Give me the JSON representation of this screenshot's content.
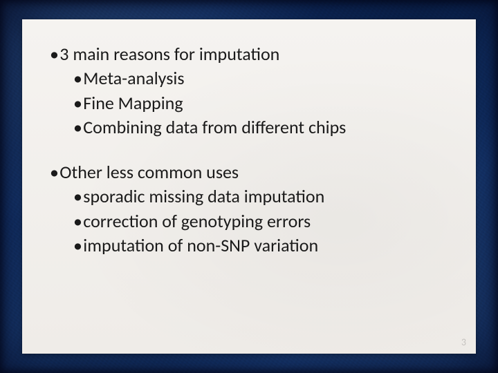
{
  "slide": {
    "background_colors": {
      "frame_base": "#0e2a5c",
      "frame_gradient_stops": [
        "#0a1f47",
        "#12346e",
        "#0d2a5a",
        "#163c7a",
        "#0b2450"
      ],
      "panel": "#f2f0ed",
      "text": "#1a1a1a"
    },
    "font_size_pt": 20,
    "bullet_char": "•",
    "blocks": [
      {
        "level": 1,
        "text": "3 main reasons for imputation",
        "children": [
          {
            "level": 2,
            "text": "Meta-analysis"
          },
          {
            "level": 2,
            "text": "Fine Mapping"
          },
          {
            "level": 2,
            "text": "Combining data from different chips"
          }
        ]
      },
      {
        "level": 1,
        "text": "Other less common uses",
        "children": [
          {
            "level": 2,
            "text": "sporadic missing data imputation"
          },
          {
            "level": 2,
            "text": "correction of genotyping errors"
          },
          {
            "level": 2,
            "text": "imputation of non-SNP variation"
          }
        ]
      }
    ],
    "page_number": "3"
  }
}
